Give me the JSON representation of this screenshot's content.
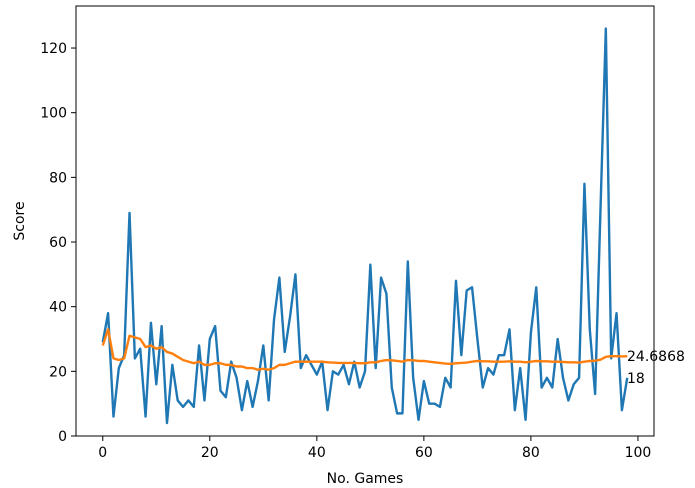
{
  "chart_data": {
    "type": "line",
    "xlabel": "No. Games",
    "ylabel": "Score",
    "xlim": [
      -5,
      103
    ],
    "ylim": [
      0,
      133
    ],
    "xticks": [
      0,
      20,
      40,
      60,
      80,
      100
    ],
    "yticks": [
      0,
      20,
      40,
      60,
      80,
      100,
      120
    ],
    "grid": false,
    "series": [
      {
        "color": "#1f77b4",
        "x": [
          0,
          1,
          2,
          3,
          4,
          5,
          6,
          7,
          8,
          9,
          10,
          11,
          12,
          13,
          14,
          15,
          16,
          17,
          18,
          19,
          20,
          21,
          22,
          23,
          24,
          25,
          26,
          27,
          28,
          29,
          30,
          31,
          32,
          33,
          34,
          35,
          36,
          37,
          38,
          39,
          40,
          41,
          42,
          43,
          44,
          45,
          46,
          47,
          48,
          49,
          50,
          51,
          52,
          53,
          54,
          55,
          56,
          57,
          58,
          59,
          60,
          61,
          62,
          63,
          64,
          65,
          66,
          67,
          68,
          69,
          70,
          71,
          72,
          73,
          74,
          75,
          76,
          77,
          78,
          79,
          80,
          81,
          82,
          83,
          84,
          85,
          86,
          87,
          88,
          89,
          90,
          91,
          92,
          93,
          94,
          95,
          96,
          97,
          98
        ],
        "values": [
          29,
          38,
          6,
          21,
          25,
          69,
          24,
          27,
          6,
          35,
          16,
          34,
          4,
          22,
          11,
          9,
          11,
          9,
          28,
          11,
          30,
          34,
          14,
          12,
          23,
          18,
          8,
          17,
          9,
          17,
          28,
          11,
          36,
          49,
          26,
          37,
          50,
          21,
          25,
          22,
          19,
          23,
          8,
          20,
          19,
          22,
          16,
          23,
          15,
          20,
          53,
          21,
          49,
          44,
          15,
          7,
          7,
          54,
          18,
          5,
          17,
          10,
          10,
          9,
          18,
          15,
          48,
          25,
          45,
          46,
          30,
          15,
          21,
          19,
          25,
          25,
          33,
          8,
          21,
          5,
          32,
          46,
          15,
          18,
          15,
          30,
          18,
          11,
          16,
          18,
          78,
          33,
          13,
          70,
          126,
          24,
          38,
          8,
          18
        ],
        "end_label": "18"
      },
      {
        "color": "#ff7f0e",
        "x": [
          0,
          1,
          2,
          3,
          4,
          5,
          6,
          7,
          8,
          9,
          10,
          11,
          12,
          13,
          14,
          15,
          16,
          17,
          18,
          19,
          20,
          21,
          22,
          23,
          24,
          25,
          26,
          27,
          28,
          29,
          30,
          31,
          32,
          33,
          34,
          35,
          36,
          37,
          38,
          39,
          40,
          41,
          42,
          43,
          44,
          45,
          46,
          47,
          48,
          49,
          50,
          51,
          52,
          53,
          54,
          55,
          56,
          57,
          58,
          59,
          60,
          61,
          62,
          63,
          64,
          65,
          66,
          67,
          68,
          69,
          70,
          71,
          72,
          73,
          74,
          75,
          76,
          77,
          78,
          79,
          80,
          81,
          82,
          83,
          84,
          85,
          86,
          87,
          88,
          89,
          90,
          91,
          92,
          93,
          94,
          95,
          96,
          97,
          98
        ],
        "values": [
          28,
          33,
          24,
          23.5,
          24,
          31,
          30.5,
          30,
          27.5,
          28,
          27,
          27.5,
          26,
          25.5,
          24.5,
          23.5,
          23,
          22.5,
          23,
          22,
          22,
          22.5,
          22.5,
          22,
          22,
          21.5,
          21.5,
          21,
          21,
          20.5,
          20.8,
          20.5,
          21,
          22,
          22,
          22.5,
          23,
          23,
          23,
          23,
          23,
          23,
          22.8,
          22.7,
          22.6,
          22.6,
          22.6,
          22.6,
          22.5,
          22.5,
          22.8,
          22.8,
          23.2,
          23.5,
          23.4,
          23.2,
          23,
          23.5,
          23.4,
          23.2,
          23.2,
          23,
          22.8,
          22.6,
          22.4,
          22.3,
          22.5,
          22.6,
          22.7,
          23,
          23.2,
          23.1,
          23.1,
          23,
          23,
          23,
          23.1,
          23,
          23,
          22.8,
          23,
          23.2,
          23.1,
          23.1,
          23,
          23,
          22.9,
          22.8,
          22.8,
          22.7,
          23,
          23.2,
          23.3,
          23.6,
          24.5,
          24.7,
          24.7,
          24.6,
          24.6868
        ],
        "end_label": "24.6868"
      }
    ]
  }
}
